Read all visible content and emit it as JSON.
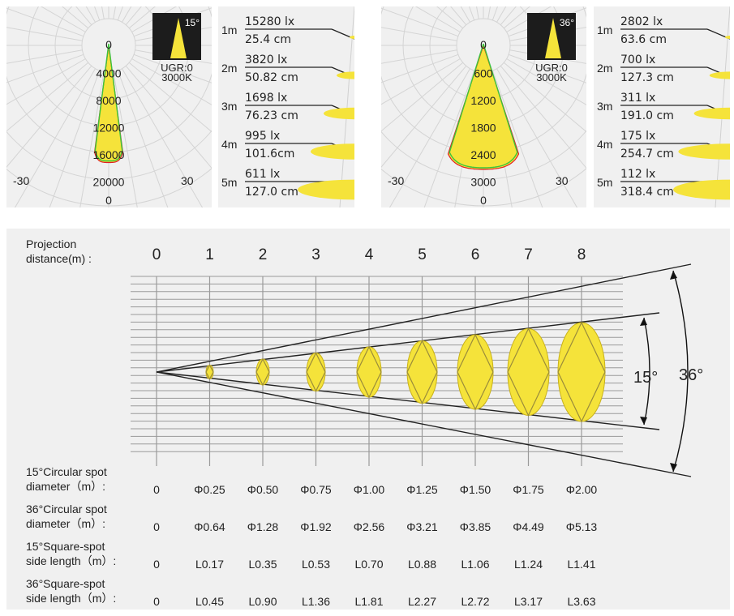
{
  "chart_data": [
    {
      "type": "polar-candela",
      "beam_angle": "15°",
      "ugr_label": "UGR:0",
      "cct_label": "3000K",
      "radial_labels": [
        "0",
        "4000",
        "8000",
        "12000",
        "16000",
        "20000"
      ],
      "angle_labels": [
        "-30",
        "30",
        "0"
      ],
      "center_value": 0,
      "max_value": 20000,
      "peak_intensity": 17000,
      "curve_half_angle_deg": 7.5,
      "colors": {
        "fill": "#f5e33a",
        "red_curve": "#e02020",
        "green_curve": "#3cc43c"
      }
    },
    {
      "type": "illuminance-table",
      "beam_angle": "15°",
      "rows": [
        {
          "distance": "1m",
          "lux": "15280 lx",
          "diameter": "25.4 cm"
        },
        {
          "distance": "2m",
          "lux": "3820 lx",
          "diameter": "50.82 cm"
        },
        {
          "distance": "3m",
          "lux": "1698 lx",
          "diameter": "76.23 cm"
        },
        {
          "distance": "4m",
          "lux": "995 lx",
          "diameter": "101.6cm"
        },
        {
          "distance": "5m",
          "lux": "611 lx",
          "diameter": "127.0 cm"
        }
      ]
    },
    {
      "type": "polar-candela",
      "beam_angle": "36°",
      "ugr_label": "UGR:0",
      "cct_label": "3000K",
      "radial_labels": [
        "0",
        "600",
        "1200",
        "1800",
        "2400",
        "3000"
      ],
      "angle_labels": [
        "-30",
        "30",
        "0"
      ],
      "center_value": 0,
      "max_value": 3000,
      "peak_intensity": 2700,
      "curve_half_angle_deg": 18,
      "colors": {
        "fill": "#f5e33a",
        "red_curve": "#e02020",
        "green_curve": "#3cc43c"
      }
    },
    {
      "type": "illuminance-table",
      "beam_angle": "36°",
      "rows": [
        {
          "distance": "1m",
          "lux": "2802 lx",
          "diameter": "63.6 cm"
        },
        {
          "distance": "2m",
          "lux": "700 lx",
          "diameter": "127.3 cm"
        },
        {
          "distance": "3m",
          "lux": "311 lx",
          "diameter": "191.0 cm"
        },
        {
          "distance": "4m",
          "lux": "175 lx",
          "diameter": "254.7 cm"
        },
        {
          "distance": "5m",
          "lux": "112 lx",
          "diameter": "318.4 cm"
        }
      ]
    },
    {
      "type": "beam-projection-table",
      "projection_label": [
        "Projection",
        "distance(m) :"
      ],
      "distances": [
        0,
        1,
        2,
        3,
        4,
        5,
        6,
        7,
        8
      ],
      "angle_labels": [
        "15°",
        "36°"
      ],
      "spot_diameters_15_m": [
        0,
        0.25,
        0.5,
        0.75,
        1.0,
        1.25,
        1.5,
        1.75,
        2.0
      ],
      "rows": [
        {
          "label": [
            "15°Circular spot",
            "diameter（m）:"
          ],
          "values": [
            "0",
            "Φ0.25",
            "Φ0.50",
            "Φ0.75",
            "Φ1.00",
            "Φ1.25",
            "Φ1.50",
            "Φ1.75",
            "Φ2.00"
          ]
        },
        {
          "label": [
            "36°Circular spot",
            "diameter（m）:"
          ],
          "values": [
            "0",
            "Φ0.64",
            "Φ1.28",
            "Φ1.92",
            "Φ2.56",
            "Φ3.21",
            "Φ3.85",
            "Φ4.49",
            "Φ5.13"
          ]
        },
        {
          "label": [
            "15°Square-spot",
            "side length（m）:"
          ],
          "values": [
            "0",
            "L0.17",
            "L0.35",
            "L0.53",
            "L0.70",
            "L0.88",
            "L1.06",
            "L1.24",
            "L1.41"
          ]
        },
        {
          "label": [
            "36°Square-spot",
            "side length（m）:"
          ],
          "values": [
            "0",
            "L0.45",
            "L0.90",
            "L1.36",
            "L1.81",
            "L2.27",
            "L2.72",
            "L3.17",
            "L3.63"
          ]
        }
      ],
      "colors": {
        "spot": "#f5e33a",
        "spot_stroke": "#c9b21a",
        "lines": "#222222",
        "grid": "#9a9a9a"
      }
    }
  ]
}
